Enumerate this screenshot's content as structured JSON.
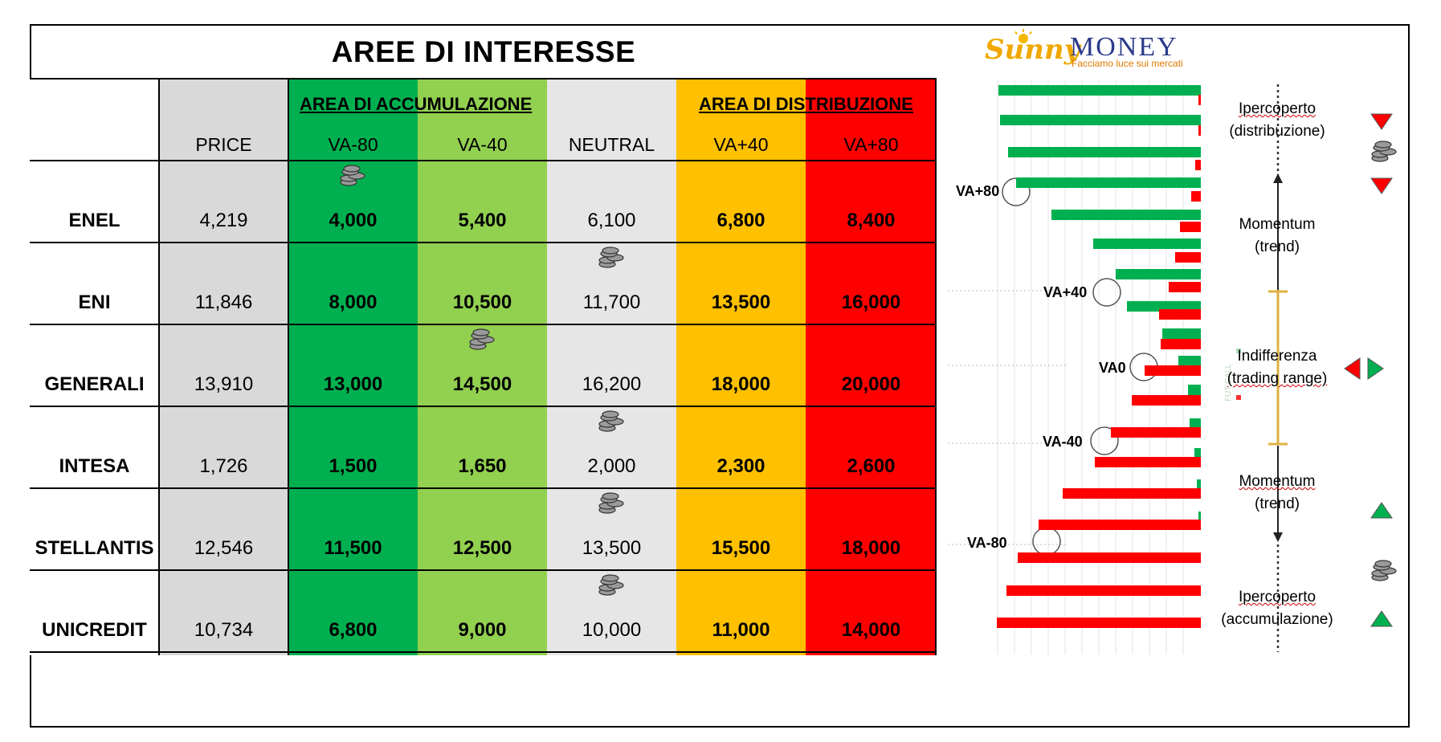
{
  "title": "AREE DI INTERESSE",
  "logo": {
    "word1": "Sunny",
    "word2": "MONEY",
    "tagline": "Facciamo luce sui mercati"
  },
  "table": {
    "group_accumulation": "AREA DI ACCUMULAZIONE",
    "group_distribution": "AREA DI DISTRIBUZIONE",
    "headers": [
      "",
      "PRICE",
      "VA-80",
      "VA-40",
      "NEUTRAL",
      "VA+40",
      "VA+80"
    ],
    "column_colors": [
      "#ffffff",
      "#d9d9d9",
      "#00b050",
      "#92d050",
      "#e7e6e6",
      "#ffc000",
      "#ff0000"
    ],
    "rows": [
      {
        "name": "ENEL",
        "price": "4,219",
        "va_m80": "4,000",
        "va_m40": "5,400",
        "neutral": "6,100",
        "va_p40": "6,800",
        "va_p80": "8,400",
        "coin_icon": "VA-80"
      },
      {
        "name": "ENI",
        "price": "11,846",
        "va_m80": "8,000",
        "va_m40": "10,500",
        "neutral": "11,700",
        "va_p40": "13,500",
        "va_p80": "16,000",
        "coin_icon": "NEUTRAL"
      },
      {
        "name": "GENERALI",
        "price": "13,910",
        "va_m80": "13,000",
        "va_m40": "14,500",
        "neutral": "16,200",
        "va_p40": "18,000",
        "va_p80": "20,000",
        "coin_icon": "VA-40"
      },
      {
        "name": "INTESA",
        "price": "1,726",
        "va_m80": "1,500",
        "va_m40": "1,650",
        "neutral": "2,000",
        "va_p40": "2,300",
        "va_p80": "2,600",
        "coin_icon": "NEUTRAL"
      },
      {
        "name": "STELLANTIS",
        "price": "12,546",
        "va_m80": "11,500",
        "va_m40": "12,500",
        "neutral": "13,500",
        "va_p40": "15,500",
        "va_p80": "18,000",
        "coin_icon": "NEUTRAL"
      },
      {
        "name": "UNICREDIT",
        "price": "10,734",
        "va_m80": "6,800",
        "va_m40": "9,000",
        "neutral": "10,000",
        "va_p40": "11,000",
        "va_p80": "14,000",
        "coin_icon": "NEUTRAL"
      }
    ]
  },
  "diagram": {
    "level_labels": [
      "VA+80",
      "VA+40",
      "VA0",
      "VA-40",
      "VA-80"
    ],
    "zones": [
      {
        "line1": "Ipercoperto",
        "line2": "(distribuzione)"
      },
      {
        "line1": "Momentum",
        "line2": "(trend)"
      },
      {
        "line1": "Indifferenza",
        "line2": "(trading range)"
      },
      {
        "line1": "Momentum",
        "line2": "(trend)"
      },
      {
        "line1": "Ipercoperto",
        "line2": "(accumulazione)"
      }
    ],
    "legend_faint": "FUT CALL",
    "colors": {
      "call": "#00b050",
      "put": "#ff0000",
      "axis_gold": "#e0b040"
    },
    "icons": [
      "down-triangle-icon",
      "coins-icon",
      "down-triangle-icon",
      "left-right-triangles-icon",
      "up-triangle-icon",
      "coins-icon",
      "up-triangle-icon"
    ]
  }
}
